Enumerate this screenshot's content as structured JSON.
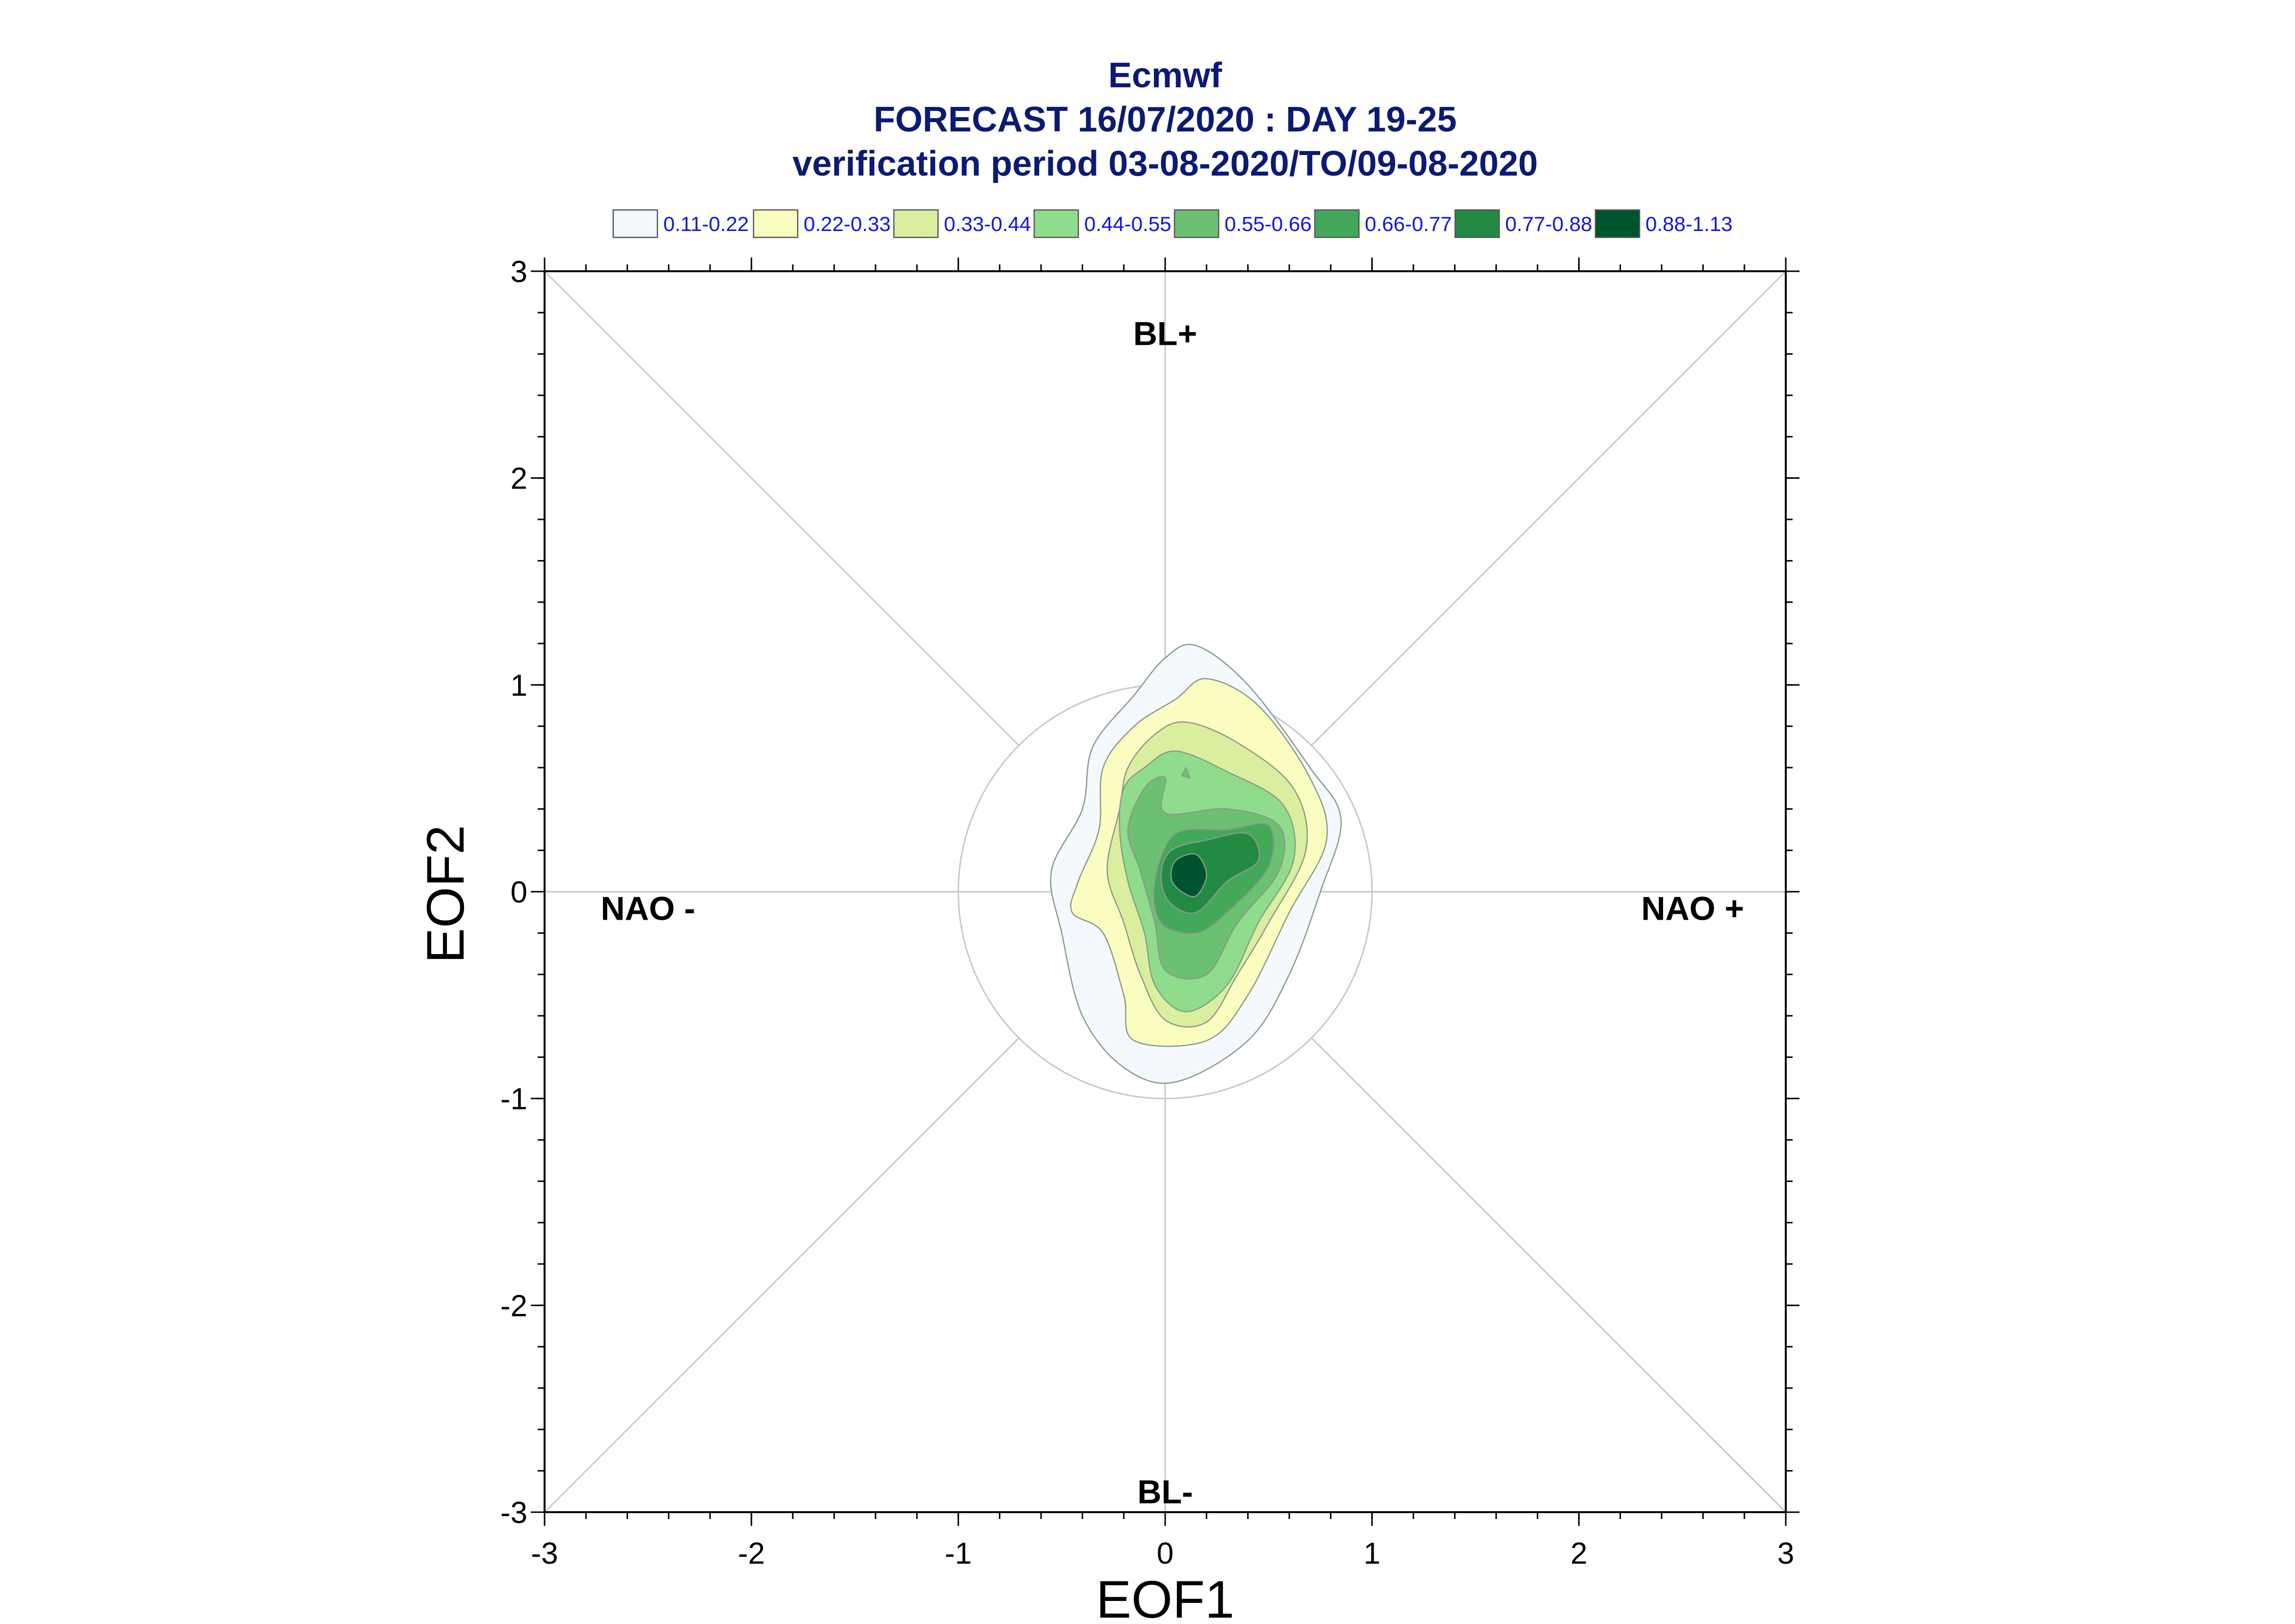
{
  "chart_data": {
    "type": "contour",
    "title": "Ecmwf",
    "subtitle": "FORECAST 16/07/2020 : DAY 19-25",
    "subtitle2": "verification period 03-08-2020/TO/09-08-2020",
    "xlabel": "EOF1",
    "ylabel": "EOF2",
    "xlim": [
      -3,
      3
    ],
    "ylim": [
      -3,
      3
    ],
    "xticks": [
      "-3",
      "-2",
      "-1",
      "0",
      "1",
      "2",
      "3"
    ],
    "yticks": [
      "-3",
      "-2",
      "-1",
      "0",
      "1",
      "2",
      "3"
    ],
    "grid": false,
    "reference_circle_radius": 1,
    "legend_position": "top",
    "legend": [
      {
        "label": "0.11-0.22",
        "color": "#f3f9fc"
      },
      {
        "label": "0.22-0.33",
        "color": "#fbfdc0"
      },
      {
        "label": "0.33-0.44",
        "color": "#d9ef9f"
      },
      {
        "label": "0.44-0.55",
        "color": "#8fdc8c"
      },
      {
        "label": "0.55-0.66",
        "color": "#6cc071"
      },
      {
        "label": "0.66-0.77",
        "color": "#43a85a"
      },
      {
        "label": "0.77-0.88",
        "color": "#228a43"
      },
      {
        "label": "0.88-1.13",
        "color": "#00542d"
      }
    ],
    "regime_labels": [
      {
        "label": "BL+",
        "x": 0,
        "y": 2.7
      },
      {
        "label": "BL-",
        "x": 0,
        "y": -2.9
      },
      {
        "label": "NAO -",
        "x": -2.5,
        "y": -0.08
      },
      {
        "label": "NAO +",
        "x": 2.55,
        "y": -0.08
      }
    ],
    "density_levels": [
      {
        "range": "0.11-0.22",
        "color": "#f3f9fc",
        "outline": [
          [
            0.0,
            1.13
          ],
          [
            0.15,
            1.19
          ],
          [
            0.4,
            1.0
          ],
          [
            0.7,
            0.6
          ],
          [
            0.85,
            0.35
          ],
          [
            0.75,
            0.0
          ],
          [
            0.6,
            -0.4
          ],
          [
            0.4,
            -0.72
          ],
          [
            0.05,
            -0.92
          ],
          [
            -0.2,
            -0.85
          ],
          [
            -0.4,
            -0.6
          ],
          [
            -0.5,
            -0.2
          ],
          [
            -0.55,
            0.1
          ],
          [
            -0.4,
            0.4
          ],
          [
            -0.35,
            0.7
          ],
          [
            -0.15,
            0.95
          ]
        ]
      },
      {
        "range": "0.22-0.33",
        "color": "#fbfdc0",
        "outline": [
          [
            0.05,
            0.93
          ],
          [
            0.2,
            1.03
          ],
          [
            0.45,
            0.9
          ],
          [
            0.7,
            0.55
          ],
          [
            0.78,
            0.25
          ],
          [
            0.6,
            -0.1
          ],
          [
            0.4,
            -0.5
          ],
          [
            0.2,
            -0.72
          ],
          [
            -0.15,
            -0.72
          ],
          [
            -0.2,
            -0.5
          ],
          [
            -0.3,
            -0.2
          ],
          [
            -0.45,
            -0.1
          ],
          [
            -0.42,
            0.05
          ],
          [
            -0.32,
            0.3
          ],
          [
            -0.3,
            0.6
          ],
          [
            -0.15,
            0.8
          ]
        ]
      },
      {
        "range": "0.33-0.44",
        "color": "#d9ef9f",
        "outline": [
          [
            0.1,
            0.82
          ],
          [
            0.35,
            0.72
          ],
          [
            0.62,
            0.5
          ],
          [
            0.68,
            0.2
          ],
          [
            0.5,
            -0.15
          ],
          [
            0.35,
            -0.4
          ],
          [
            0.2,
            -0.63
          ],
          [
            0.0,
            -0.62
          ],
          [
            -0.12,
            -0.4
          ],
          [
            -0.2,
            -0.15
          ],
          [
            -0.28,
            0.1
          ],
          [
            -0.22,
            0.4
          ],
          [
            -0.18,
            0.6
          ],
          [
            -0.05,
            0.76
          ]
        ]
      },
      {
        "range": "0.44-0.55",
        "color": "#8fdc8c",
        "outline": [
          [
            0.05,
            0.68
          ],
          [
            0.3,
            0.58
          ],
          [
            0.57,
            0.42
          ],
          [
            0.62,
            0.15
          ],
          [
            0.45,
            -0.15
          ],
          [
            0.3,
            -0.45
          ],
          [
            0.1,
            -0.58
          ],
          [
            -0.05,
            -0.45
          ],
          [
            -0.1,
            -0.2
          ],
          [
            -0.18,
            0.05
          ],
          [
            -0.22,
            0.3
          ],
          [
            -0.2,
            0.5
          ],
          [
            -0.1,
            0.6
          ]
        ]
      },
      {
        "range": "0.55-0.66",
        "color": "#6cc071",
        "outline": [
          [
            -0.1,
            0.5
          ],
          [
            0.0,
            0.55
          ],
          [
            0.0,
            0.38
          ],
          [
            0.3,
            0.4
          ],
          [
            0.55,
            0.32
          ],
          [
            0.55,
            0.1
          ],
          [
            0.35,
            -0.15
          ],
          [
            0.2,
            -0.4
          ],
          [
            0.0,
            -0.38
          ],
          [
            -0.05,
            -0.15
          ],
          [
            -0.12,
            0.1
          ],
          [
            -0.18,
            0.3
          ]
        ]
      },
      {
        "range": "0.66-0.77",
        "color": "#43a85a",
        "outline": [
          [
            0.05,
            0.28
          ],
          [
            0.3,
            0.3
          ],
          [
            0.5,
            0.32
          ],
          [
            0.5,
            0.12
          ],
          [
            0.3,
            -0.1
          ],
          [
            0.15,
            -0.2
          ],
          [
            -0.02,
            -0.15
          ],
          [
            -0.05,
            0.05
          ]
        ]
      },
      {
        "range": "0.77-0.88",
        "color": "#228a43",
        "outline": [
          [
            0.03,
            0.2
          ],
          [
            0.2,
            0.25
          ],
          [
            0.4,
            0.28
          ],
          [
            0.45,
            0.15
          ],
          [
            0.3,
            0.05
          ],
          [
            0.15,
            -0.1
          ],
          [
            0.02,
            -0.05
          ],
          [
            -0.02,
            0.08
          ]
        ]
      },
      {
        "range": "0.88-1.13",
        "color": "#00542d",
        "outline": [
          [
            0.05,
            0.15
          ],
          [
            0.15,
            0.18
          ],
          [
            0.2,
            0.08
          ],
          [
            0.15,
            -0.02
          ],
          [
            0.08,
            0.0
          ],
          [
            0.03,
            0.06
          ]
        ]
      }
    ]
  }
}
